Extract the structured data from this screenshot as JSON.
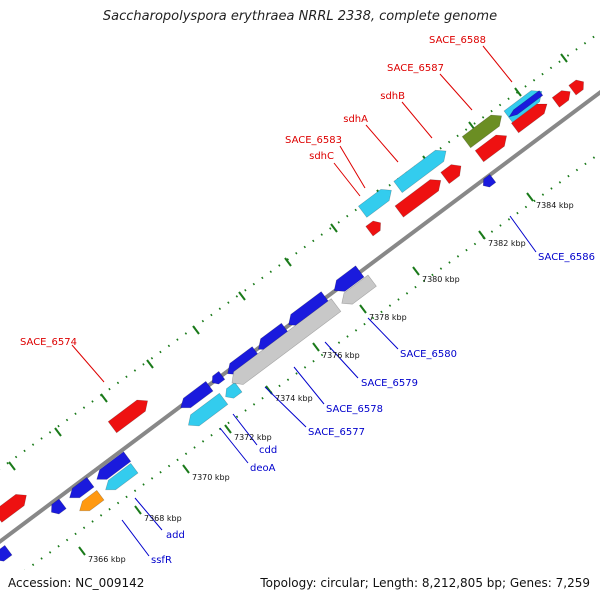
{
  "title": "Saccharopolyspora erythraea NRRL 2338, complete genome",
  "footer": {
    "accession": "Accession: NC_009142",
    "summary": "Topology: circular; Length: 8,212,805 bp; Genes: 7,259"
  },
  "colors": {
    "backbone": "#888888",
    "tick_dot": "#1a7a1a",
    "tick_major": "#1a7a1a",
    "label_forward": "#dd0000",
    "label_reverse": "#0000cc",
    "gene_red": "#ee1111",
    "gene_blue": "#1a1add",
    "gene_cyan": "#33ccee",
    "gene_gray": "#c8c8c8",
    "gene_olive": "#6b8e23",
    "gene_orange": "#ff9911"
  },
  "ticks": [
    "7366 kbp",
    "7368 kbp",
    "7370 kbp",
    "7372 kbp",
    "7374 kbp",
    "7376 kbp",
    "7378 kbp",
    "7380 kbp",
    "7382 kbp",
    "7384 kbp"
  ],
  "genes": [
    {
      "name": "SACE_6574",
      "strand": "forward"
    },
    {
      "name": "SACE_6583",
      "strand": "forward"
    },
    {
      "name": "sdhC",
      "strand": "forward"
    },
    {
      "name": "sdhA",
      "strand": "forward"
    },
    {
      "name": "sdhB",
      "strand": "forward"
    },
    {
      "name": "SACE_6587",
      "strand": "forward"
    },
    {
      "name": "SACE_6588",
      "strand": "forward"
    },
    {
      "name": "ssfR",
      "strand": "reverse"
    },
    {
      "name": "add",
      "strand": "reverse"
    },
    {
      "name": "deoA",
      "strand": "reverse"
    },
    {
      "name": "cdd",
      "strand": "reverse"
    },
    {
      "name": "SACE_6577",
      "strand": "reverse"
    },
    {
      "name": "SACE_6578",
      "strand": "reverse"
    },
    {
      "name": "SACE_6579",
      "strand": "reverse"
    },
    {
      "name": "SACE_6580",
      "strand": "reverse"
    },
    {
      "name": "SACE_6586",
      "strand": "reverse"
    }
  ]
}
